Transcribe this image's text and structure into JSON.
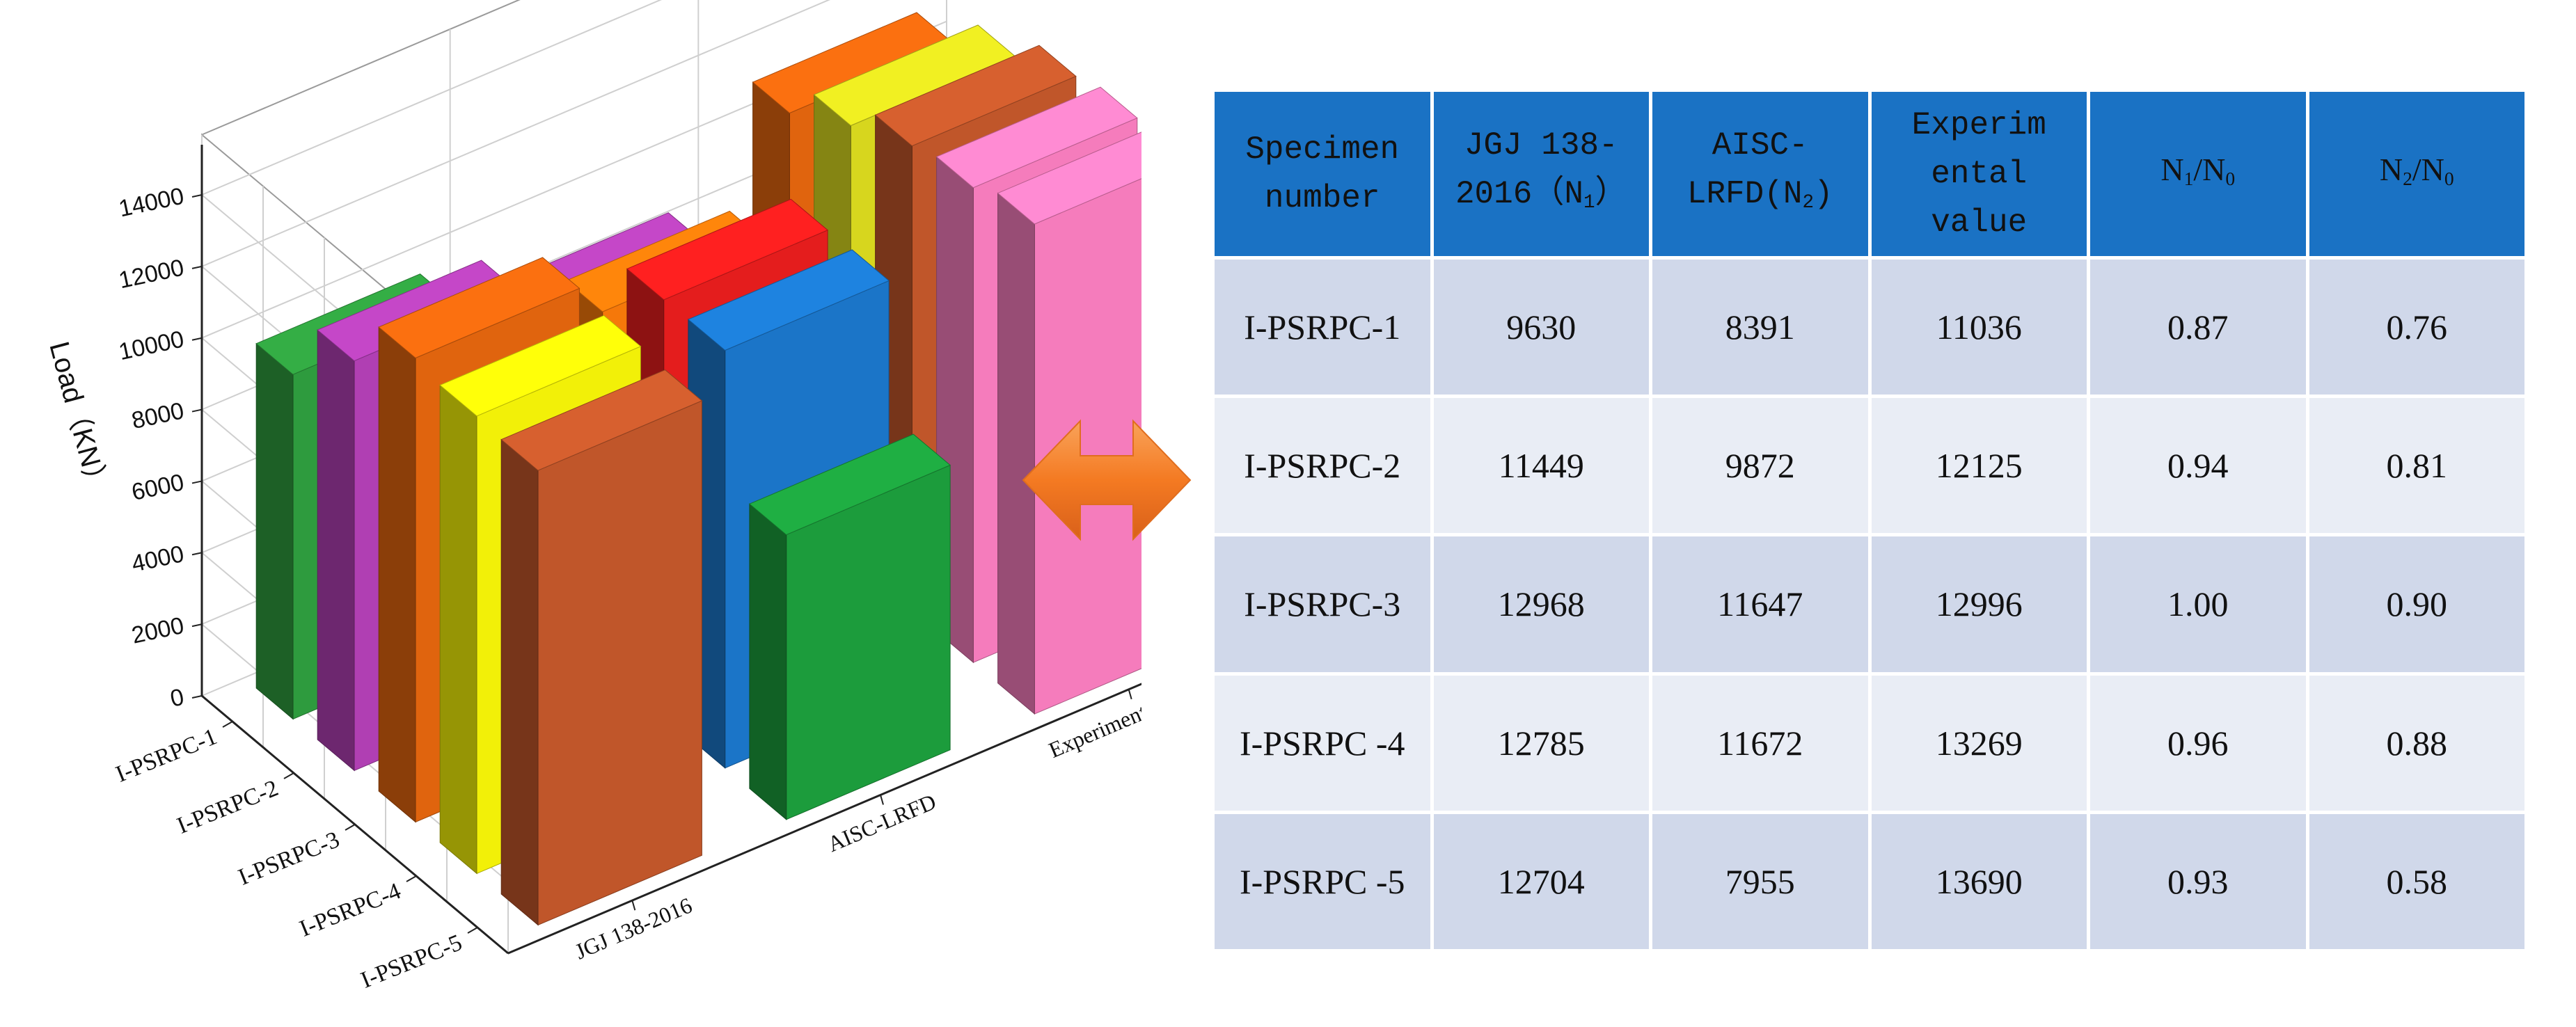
{
  "chart_data": {
    "type": "bar3d",
    "ylabel": "Load（KN）",
    "ylim": [
      0,
      14000
    ],
    "yticks": [
      0,
      2000,
      4000,
      6000,
      8000,
      10000,
      12000,
      14000
    ],
    "depth_categories": [
      "I-PSRPC-1",
      "I-PSRPC-2",
      "I-PSRPC-3",
      "I-PSRPC-4",
      "I-PSRPC-5"
    ],
    "series": [
      {
        "name": "JGJ 138-2016",
        "values": [
          9630,
          11449,
          12968,
          12785,
          12704
        ]
      },
      {
        "name": "AISC-LRFD",
        "values": [
          8391,
          9872,
          11647,
          11672,
          7955
        ]
      },
      {
        "name": "Experimental value",
        "values": [
          11036,
          12125,
          12996,
          13269,
          13690
        ]
      }
    ],
    "bar_colors": [
      [
        "#2e9b3e",
        "#b03fb3",
        "#e0640e"
      ],
      [
        "#b03fb3",
        "#f5780a",
        "#d7d61e"
      ],
      [
        "#e0640e",
        "#e41d1d",
        "#c0562a"
      ],
      [
        "#f2f008",
        "#1b75c8",
        "#f57cbc"
      ],
      [
        "#c0562a",
        "#1c9c3c",
        "#f57cbc"
      ]
    ],
    "grid": true
  },
  "table": {
    "headers": {
      "specimen": [
        "Specimen",
        "number"
      ],
      "jgj": [
        "JGJ 138-",
        "2016（N",
        "1",
        "）"
      ],
      "aisc": [
        "AISC-",
        "LRFD(N",
        "2",
        ")"
      ],
      "experimental": [
        "Experim",
        "ental",
        "value"
      ],
      "n1n0": [
        "N",
        "1",
        "/N",
        "0"
      ],
      "n2n0": [
        "N",
        "2",
        "/N",
        "0"
      ]
    },
    "rows": [
      {
        "specimen": "I-PSRPC-1",
        "jgj": "9630",
        "aisc": "8391",
        "experimental": "11036",
        "n1n0": "0.87",
        "n2n0": "0.76"
      },
      {
        "specimen": "I-PSRPC-2",
        "jgj": "11449",
        "aisc": "9872",
        "experimental": "12125",
        "n1n0": "0.94",
        "n2n0": "0.81"
      },
      {
        "specimen": "I-PSRPC-3",
        "jgj": "12968",
        "aisc": "11647",
        "experimental": "12996",
        "n1n0": "1.00",
        "n2n0": "0.90"
      },
      {
        "specimen": "I-PSRPC -4",
        "jgj": "12785",
        "aisc": "11672",
        "experimental": "13269",
        "n1n0": "0.96",
        "n2n0": "0.88"
      },
      {
        "specimen": "I-PSRPC -5",
        "jgj": "12704",
        "aisc": "7955",
        "experimental": "13690",
        "n1n0": "0.93",
        "n2n0": "0.58"
      }
    ]
  },
  "arrow": {
    "icon": "double-arrow-icon",
    "color": "#f47a22"
  }
}
